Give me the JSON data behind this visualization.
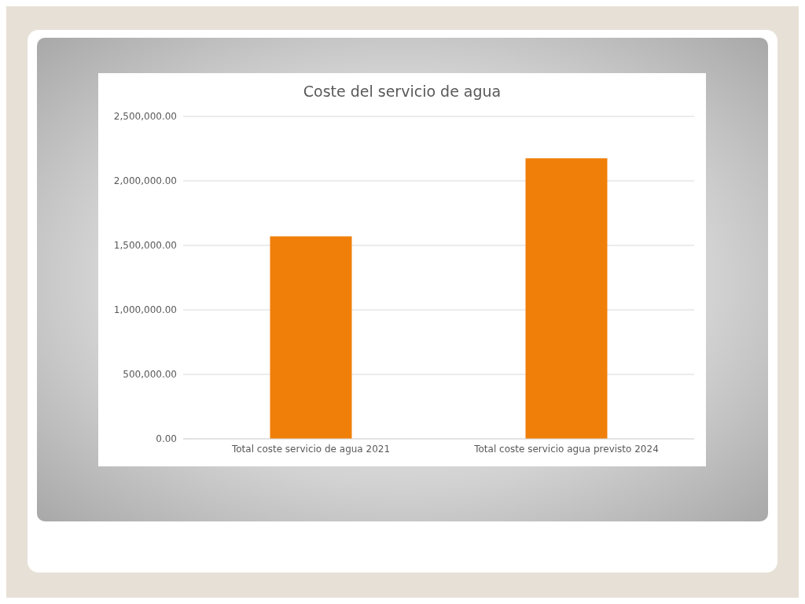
{
  "chart_data": {
    "type": "bar",
    "title": "Coste del servicio de agua",
    "categories": [
      "Total coste servicio de agua 2021",
      "Total coste servicio agua previsto 2024"
    ],
    "values": [
      1570000,
      2175000
    ],
    "color": "#f07f09",
    "ylim": [
      0,
      2500000
    ],
    "yticks": [
      {
        "value": 0,
        "label": "0.00"
      },
      {
        "value": 500000,
        "label": "500,000.00"
      },
      {
        "value": 1000000,
        "label": "1,000,000.00"
      },
      {
        "value": 1500000,
        "label": "1,500,000.00"
      },
      {
        "value": 2000000,
        "label": "2,000,000.00"
      },
      {
        "value": 2500000,
        "label": "2,500,000.00"
      }
    ],
    "grid": "y"
  }
}
